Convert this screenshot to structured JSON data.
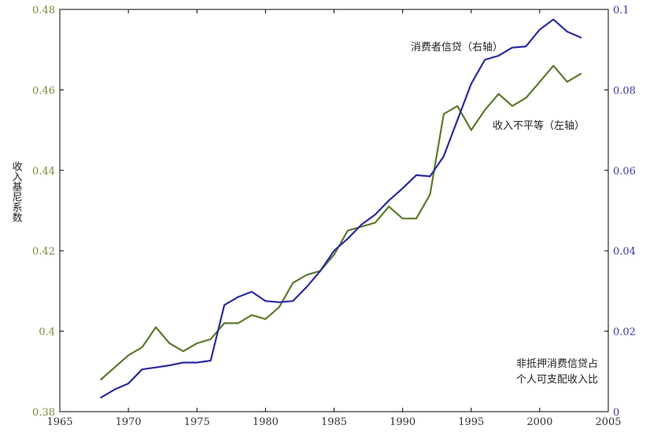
{
  "chart_data": {
    "type": "line",
    "title": "",
    "ylabel": "收入基尼系数",
    "xlim": [
      1965,
      2005
    ],
    "x_ticks": [
      1965,
      1970,
      1975,
      1980,
      1985,
      1990,
      1995,
      2000,
      2005
    ],
    "y_left_lim": [
      0.38,
      0.48
    ],
    "y_left_ticks": [
      0.38,
      0.4,
      0.42,
      0.44,
      0.46,
      0.48
    ],
    "y_left_tick_labels": [
      "0.38",
      "0.4",
      "0.42",
      "0.44",
      "0.46",
      "0.48"
    ],
    "y_right_lim": [
      0,
      0.1
    ],
    "y_right_ticks": [
      0,
      0.02,
      0.04,
      0.06,
      0.08,
      0.1
    ],
    "y_right_tick_labels": [
      "0",
      "0.02",
      "0.04",
      "0.06",
      "0.08",
      "0.1"
    ],
    "grid": false,
    "series": [
      {
        "name": "收入不平等（左轴）",
        "axis": "left",
        "color": "#5a7a2a",
        "x": [
          1968,
          1969,
          1970,
          1971,
          1972,
          1973,
          1974,
          1975,
          1976,
          1977,
          1978,
          1979,
          1980,
          1981,
          1982,
          1983,
          1984,
          1985,
          1986,
          1987,
          1988,
          1989,
          1990,
          1991,
          1992,
          1993,
          1994,
          1995,
          1996,
          1997,
          1998,
          1999,
          2000,
          2001,
          2002,
          2003
        ],
        "values": [
          0.388,
          0.391,
          0.394,
          0.396,
          0.401,
          0.397,
          0.395,
          0.397,
          0.398,
          0.402,
          0.402,
          0.404,
          0.403,
          0.406,
          0.412,
          0.414,
          0.415,
          0.419,
          0.425,
          0.426,
          0.427,
          0.431,
          0.428,
          0.428,
          0.434,
          0.454,
          0.456,
          0.45,
          0.455,
          0.459,
          0.456,
          0.458,
          0.462,
          0.466,
          0.462,
          0.464
        ]
      },
      {
        "name": "消费者信贷（右轴）",
        "axis": "right",
        "color": "#2a2aa0",
        "x": [
          1968,
          1969,
          1970,
          1971,
          1972,
          1973,
          1974,
          1975,
          1976,
          1977,
          1978,
          1979,
          1980,
          1981,
          1982,
          1983,
          1984,
          1985,
          1986,
          1987,
          1988,
          1989,
          1990,
          1991,
          1992,
          1993,
          1994,
          1995,
          1996,
          1997,
          1998,
          1999,
          2000,
          2001,
          2002,
          2003
        ],
        "values": [
          0.0035,
          0.0055,
          0.007,
          0.0105,
          0.011,
          0.0115,
          0.0122,
          0.0122,
          0.0127,
          0.0265,
          0.0285,
          0.0298,
          0.0275,
          0.0272,
          0.0275,
          0.031,
          0.035,
          0.04,
          0.043,
          0.0465,
          0.049,
          0.0525,
          0.0555,
          0.0588,
          0.0585,
          0.0635,
          0.0725,
          0.0815,
          0.0875,
          0.0885,
          0.0905,
          0.0908,
          0.095,
          0.0975,
          0.0945,
          0.093
        ]
      }
    ],
    "annotations": [
      "消费者信贷（右轴）",
      "收入不平等（左轴）",
      "非抵押消费信贷占",
      "个人可支配收入比"
    ]
  }
}
